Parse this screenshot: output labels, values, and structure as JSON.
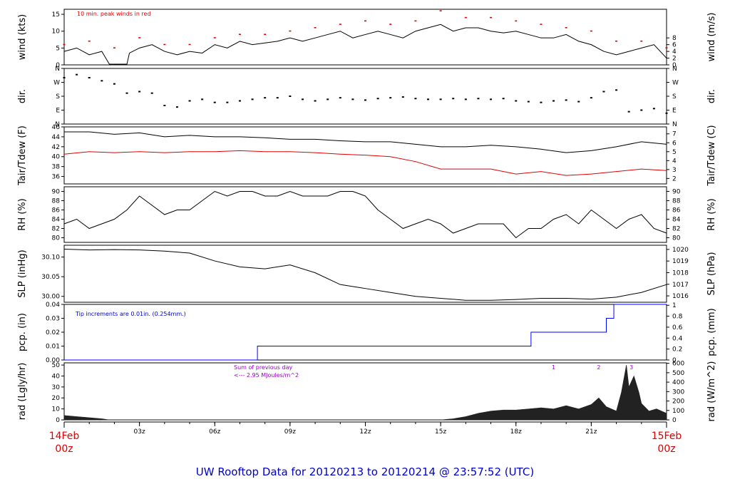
{
  "colors": {
    "axis": "#000000",
    "red": "#e00000",
    "blue": "#0000ff",
    "purple": "#9900cc",
    "title": "#0000cc",
    "fill": "#222222"
  },
  "title": "UW Rooftop Data for 20120213  to  20120214 @ 23:57:52  (UTC)",
  "x_axis": {
    "ticks": [
      "03z",
      "06z",
      "09z",
      "12z",
      "15z",
      "18z",
      "21z"
    ],
    "tick_hours": [
      3,
      6,
      9,
      12,
      15,
      18,
      21
    ],
    "start_date": "14Feb",
    "start_time": "00z",
    "end_date": "15Feb",
    "end_time": "00z",
    "range_hours": [
      0,
      24
    ]
  },
  "chart_data": [
    {
      "type": "line",
      "id": "wind",
      "ylabel_left": "wind (kts)",
      "ylabel_right": "wind (m/s)",
      "ylim": [
        0,
        16.5
      ],
      "yticks_left": [
        "0",
        "5",
        "10",
        "15"
      ],
      "yticks_left_values": [
        0,
        5,
        10,
        15
      ],
      "yticks_right": [
        "0",
        "2",
        "4",
        "6",
        "8"
      ],
      "yticks_right_values": [
        0,
        2,
        4,
        6,
        8
      ],
      "annotation": "10 min. peak winds in red",
      "series": [
        {
          "name": "wind speed",
          "x": [
            0,
            0.5,
            1,
            1.5,
            1.8,
            2.5,
            2.6,
            3,
            3.5,
            4,
            4.5,
            5,
            5.5,
            6,
            6.5,
            7,
            7.5,
            8,
            8.5,
            9,
            9.5,
            10,
            10.5,
            11,
            11.5,
            12,
            12.5,
            13,
            13.5,
            14,
            14.5,
            15,
            15.5,
            16,
            16.5,
            17,
            17.5,
            18,
            18.5,
            19,
            19.5,
            20,
            20.5,
            21,
            21.5,
            22,
            22.5,
            23,
            23.5,
            24
          ],
          "values": [
            4,
            5,
            3,
            4,
            0.2,
            0.2,
            3.5,
            5,
            6,
            4,
            3,
            4,
            3.5,
            6,
            5,
            7,
            6,
            6.5,
            7,
            8,
            7,
            8,
            9,
            10,
            8,
            9,
            10,
            9,
            8,
            10,
            11,
            12,
            10,
            11,
            11,
            10,
            9.5,
            10,
            9,
            8,
            8,
            9,
            7,
            6,
            4,
            3,
            4,
            5,
            6,
            2
          ]
        },
        {
          "name": "10 min peak",
          "x": [
            0,
            1,
            2,
            3,
            4,
            5,
            6,
            7,
            8,
            9,
            10,
            11,
            12,
            13,
            14,
            15,
            16,
            17,
            18,
            19,
            20,
            21,
            22,
            23,
            24
          ],
          "values": [
            6,
            7,
            5,
            8,
            6,
            6,
            8,
            9,
            9,
            10,
            11,
            12,
            13,
            12,
            13,
            16,
            14,
            14,
            13,
            12,
            11,
            10,
            7,
            7,
            5
          ]
        }
      ]
    },
    {
      "type": "scatter",
      "id": "dir",
      "ylabel_left": "dir.",
      "ylabel_right": "dir.",
      "ylim": [
        0,
        360
      ],
      "yticks_left": [
        "N",
        "E",
        "S",
        "W",
        "N"
      ],
      "yticks_left_values": [
        0,
        90,
        180,
        270,
        360
      ],
      "yticks_right": [
        "N",
        "E",
        "S",
        "W",
        "N"
      ],
      "yticks_right_values": [
        0,
        90,
        180,
        270,
        360
      ],
      "series": [
        {
          "name": "wind direction",
          "x": [
            0,
            0.5,
            1,
            1.5,
            2,
            2.5,
            3,
            3.5,
            4,
            4.5,
            5,
            5.5,
            6,
            6.5,
            7,
            7.5,
            8,
            8.5,
            9,
            9.5,
            10,
            10.5,
            11,
            11.5,
            12,
            12.5,
            13,
            13.5,
            14,
            14.5,
            15,
            15.5,
            16,
            16.5,
            17,
            17.5,
            18,
            18.5,
            19,
            19.5,
            20,
            20.5,
            21,
            21.5,
            22,
            22.5,
            23,
            23.5,
            24
          ],
          "values": [
            300,
            320,
            300,
            280,
            260,
            200,
            210,
            200,
            120,
            110,
            150,
            160,
            140,
            140,
            150,
            160,
            170,
            170,
            180,
            160,
            150,
            160,
            170,
            160,
            155,
            165,
            170,
            175,
            165,
            160,
            160,
            165,
            160,
            165,
            160,
            165,
            150,
            145,
            140,
            150,
            155,
            145,
            170,
            210,
            220,
            80,
            90,
            100,
            70
          ]
        }
      ]
    },
    {
      "type": "line",
      "id": "temp",
      "ylabel_left": "Tair/Tdew (F)",
      "ylabel_right": "Tair/Tdew (C)",
      "ylim": [
        34.5,
        46
      ],
      "yticks_left": [
        "36",
        "38",
        "40",
        "42",
        "44",
        "46"
      ],
      "yticks_left_values": [
        36,
        38,
        40,
        42,
        44,
        46
      ],
      "yticks_right": [
        "2",
        "3",
        "4",
        "5",
        "6",
        "7"
      ],
      "yticks_right_values": [
        35.6,
        37.4,
        39.2,
        41,
        42.8,
        44.6
      ],
      "series": [
        {
          "name": "Tair",
          "x": [
            0,
            1,
            2,
            3,
            4,
            5,
            6,
            7,
            8,
            9,
            10,
            11,
            12,
            13,
            14,
            15,
            16,
            17,
            18,
            19,
            20,
            21,
            22,
            23,
            24
          ],
          "values": [
            45,
            45,
            44.5,
            44.8,
            44,
            44.3,
            44,
            44,
            43.8,
            43.5,
            43.5,
            43.2,
            43,
            43,
            42.5,
            42,
            42,
            42.3,
            42,
            41.5,
            40.8,
            41.2,
            42,
            43,
            42.5
          ]
        },
        {
          "name": "Tdew",
          "x": [
            0,
            1,
            2,
            3,
            4,
            5,
            6,
            7,
            8,
            9,
            10,
            11,
            12,
            13,
            14,
            15,
            16,
            17,
            18,
            19,
            20,
            21,
            22,
            23,
            24
          ],
          "values": [
            40.5,
            41,
            40.8,
            41,
            40.8,
            41,
            41,
            41.2,
            41,
            41,
            40.8,
            40.5,
            40.3,
            40,
            39,
            37.5,
            37.5,
            37.5,
            36.5,
            37,
            36.2,
            36.5,
            37,
            37.5,
            37.2
          ]
        }
      ]
    },
    {
      "type": "line",
      "id": "rh",
      "ylabel_left": "RH (%)",
      "ylabel_right": "RH (%)",
      "ylim": [
        79,
        91
      ],
      "yticks_left": [
        "80",
        "82",
        "84",
        "86",
        "88",
        "90"
      ],
      "yticks_left_values": [
        80,
        82,
        84,
        86,
        88,
        90
      ],
      "yticks_right": [
        "80",
        "82",
        "84",
        "86",
        "88",
        "90"
      ],
      "yticks_right_values": [
        80,
        82,
        84,
        86,
        88,
        90
      ],
      "series": [
        {
          "name": "RH",
          "x": [
            0,
            0.5,
            1,
            1.5,
            2,
            2.5,
            3,
            3.5,
            4,
            4.5,
            5,
            5.5,
            6,
            6.5,
            7,
            7.5,
            8,
            8.5,
            9,
            9.5,
            10,
            10.5,
            11,
            11.5,
            12,
            12.5,
            13,
            13.5,
            14,
            14.5,
            15,
            15.5,
            16,
            16.5,
            17,
            17.5,
            18,
            18.5,
            19,
            19.5,
            20,
            20.5,
            21,
            21.5,
            22,
            22.5,
            23,
            23.5,
            24
          ],
          "values": [
            83,
            84,
            82,
            83,
            84,
            86,
            89,
            87,
            85,
            86,
            86,
            88,
            90,
            89,
            90,
            90,
            89,
            89,
            90,
            89,
            89,
            89,
            90,
            90,
            89,
            86,
            84,
            82,
            83,
            84,
            83,
            81,
            82,
            83,
            83,
            83,
            80,
            82,
            82,
            84,
            85,
            83,
            86,
            84,
            82,
            84,
            85,
            82,
            81
          ]
        }
      ]
    },
    {
      "type": "line",
      "id": "slp",
      "ylabel_left": "SLP (inHg)",
      "ylabel_right": "SLP (hPa)",
      "ylim": [
        29.985,
        30.13
      ],
      "yticks_left": [
        "30.00",
        "30.05",
        "30.10"
      ],
      "yticks_left_values": [
        30.0,
        30.05,
        30.1
      ],
      "yticks_right": [
        "1016",
        "1017",
        "1018",
        "1019",
        "1020"
      ],
      "yticks_right_values": [
        30.0012,
        30.0307,
        30.0603,
        30.0898,
        30.1193
      ],
      "series": [
        {
          "name": "SLP",
          "x": [
            0,
            1,
            2,
            3,
            4,
            5,
            6,
            7,
            8,
            9,
            10,
            11,
            12,
            13,
            14,
            15,
            16,
            17,
            18,
            19,
            20,
            21,
            22,
            23,
            24
          ],
          "values": [
            30.12,
            30.118,
            30.119,
            30.118,
            30.115,
            30.11,
            30.09,
            30.075,
            30.07,
            30.08,
            30.06,
            30.03,
            30.02,
            30.01,
            30.0,
            29.995,
            29.99,
            29.99,
            29.992,
            29.995,
            29.995,
            29.993,
            29.998,
            30.01,
            30.03
          ]
        }
      ]
    },
    {
      "type": "line",
      "id": "pcp",
      "ylabel_left": "pcp. (in)",
      "ylabel_right": "pcp. (mm)",
      "ylim": [
        0,
        0.04
      ],
      "yticks_left": [
        "0.00",
        "0.01",
        "0.02",
        "0.03",
        "0.04"
      ],
      "yticks_left_values": [
        0,
        0.01,
        0.02,
        0.03,
        0.04
      ],
      "yticks_right": [
        "0",
        "0.2",
        "0.4",
        "0.6",
        "0.8",
        "1"
      ],
      "yticks_right_values": [
        0,
        0.00787,
        0.01575,
        0.02362,
        0.0315,
        0.03937
      ],
      "annotation": "Tip increments are 0.01in. (0.254mm.)",
      "series": [
        {
          "name": "cumulative precipitation",
          "x": [
            0,
            7.7,
            7.7,
            18.6,
            18.6,
            21.6,
            21.6,
            21.9,
            21.9,
            24
          ],
          "values": [
            0,
            0,
            0.01,
            0.01,
            0.02,
            0.02,
            0.03,
            0.03,
            0.04,
            0.04
          ]
        }
      ]
    },
    {
      "type": "area",
      "id": "rad",
      "ylabel_left": "rad (Lgly/hr)",
      "ylabel_right": "rad (W/m^2)",
      "ylim": [
        0,
        52
      ],
      "yticks_left": [
        "0",
        "10",
        "20",
        "30",
        "40",
        "50"
      ],
      "yticks_left_values": [
        0,
        10,
        20,
        30,
        40,
        50
      ],
      "yticks_right": [
        "0",
        "100",
        "200",
        "300",
        "400",
        "500",
        "600"
      ],
      "yticks_right_values": [
        0,
        8.6,
        17.2,
        25.8,
        34.4,
        43,
        51.6
      ],
      "annotation_line1": "Sum of previous day",
      "annotation_line2": "<--- 2.95 MJoules/m^2",
      "markers": [
        "1",
        "2",
        "3"
      ],
      "marker_hours": [
        19.5,
        21.3,
        22.6
      ],
      "series": [
        {
          "name": "solar radiation",
          "x": [
            0,
            0.5,
            1,
            1.5,
            1.8,
            15,
            15.5,
            16,
            16.5,
            17,
            17.5,
            18,
            18.5,
            19,
            19.5,
            20,
            20.5,
            21,
            21.3,
            21.6,
            22,
            22.2,
            22.4,
            22.5,
            22.7,
            22.9,
            23,
            23.3,
            23.6,
            24
          ],
          "values": [
            4,
            3,
            2,
            1,
            0,
            0,
            1,
            3,
            6,
            8,
            9,
            9,
            10,
            11,
            10,
            13,
            10,
            14,
            20,
            12,
            8,
            25,
            50,
            30,
            40,
            25,
            15,
            8,
            10,
            6
          ]
        }
      ]
    }
  ]
}
